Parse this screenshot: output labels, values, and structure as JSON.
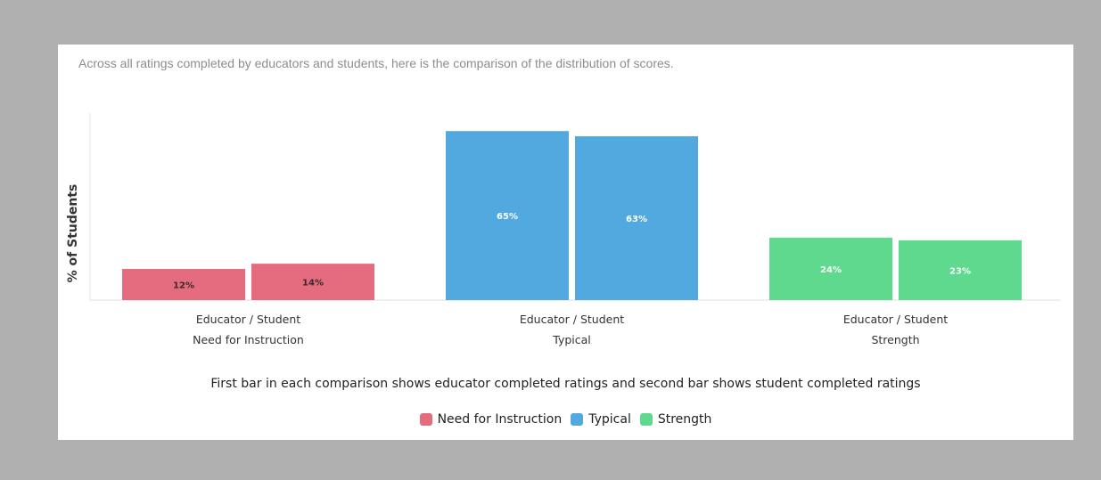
{
  "intro_text": "Across all ratings completed by educators and students, here is the comparison of the distribution of scores.",
  "note_text": "First bar in each comparison shows educator completed ratings and second bar shows student completed ratings",
  "legend": [
    {
      "label": "Need for Instruction",
      "color": "#e56c7e"
    },
    {
      "label": "Typical",
      "color": "#52a9e0"
    },
    {
      "label": "Strength",
      "color": "#5ed98d"
    }
  ],
  "chart_data": {
    "type": "bar",
    "ylabel": "% of Students",
    "groups": [
      {
        "line1": "Educator / Student",
        "line2": "Need for Instruction",
        "color": "#e56c7e",
        "values": [
          12,
          14
        ],
        "labels": [
          "12%",
          "14%"
        ]
      },
      {
        "line1": "Educator / Student",
        "line2": "Typical",
        "color": "#52a9e0",
        "values": [
          65,
          63
        ],
        "labels": [
          "65%",
          "63%"
        ]
      },
      {
        "line1": "Educator / Student",
        "line2": "Strength",
        "color": "#5ed98d",
        "values": [
          24,
          23
        ],
        "labels": [
          "24%",
          "23%"
        ]
      }
    ],
    "grid": false
  }
}
